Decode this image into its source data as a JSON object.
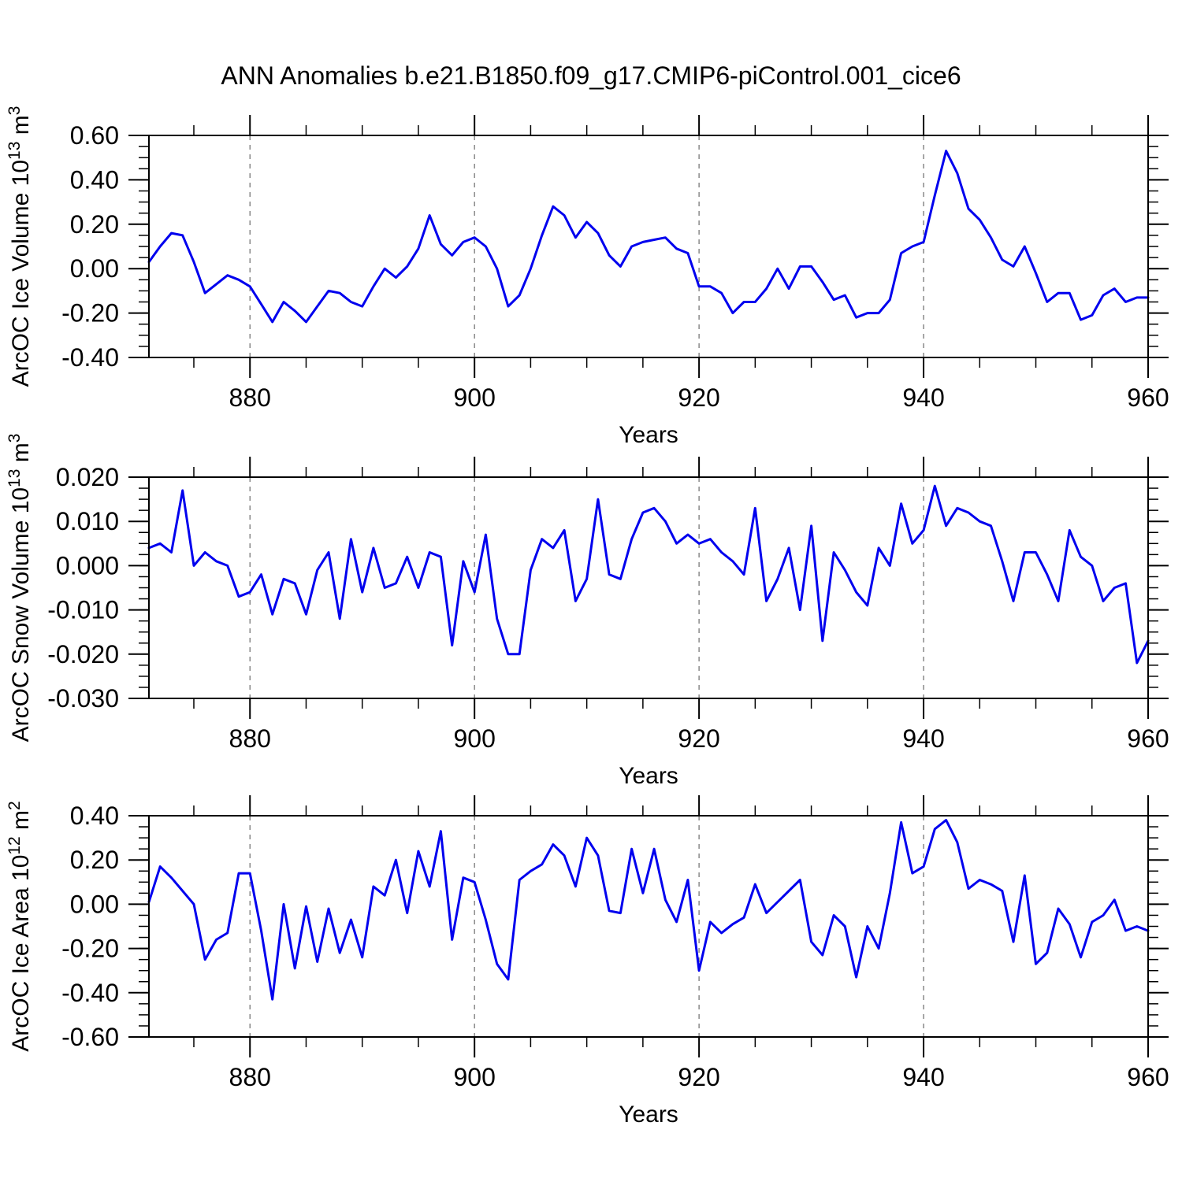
{
  "title": "ANN Anomalies b.e21.B1850.f09_g17.CMIP6-piControl.001_cice6",
  "colors": {
    "line": "#0000EE",
    "gridline": "#777777",
    "axis": "#000000",
    "text": "#000000",
    "background": "#FFFFFF"
  },
  "chart_data": {
    "type": "line",
    "figure_title": "ANN Anomalies b.e21.B1850.f09_g17.CMIP6-piControl.001_cice6",
    "grid": "vertical-dashed",
    "legend": null,
    "x": {
      "label": "Years",
      "range": [
        871,
        960
      ],
      "tick_values": [
        880,
        900,
        920,
        940,
        960
      ],
      "tick_labels": [
        "880",
        "900",
        "920",
        "940",
        "960"
      ],
      "minor_tick_start": 875,
      "minor_tick_step": 5,
      "grid_years": [
        880,
        900,
        920,
        940
      ],
      "years": [
        871,
        872,
        873,
        874,
        875,
        876,
        877,
        878,
        879,
        880,
        881,
        882,
        883,
        884,
        885,
        886,
        887,
        888,
        889,
        890,
        891,
        892,
        893,
        894,
        895,
        896,
        897,
        898,
        899,
        900,
        901,
        902,
        903,
        904,
        905,
        906,
        907,
        908,
        909,
        910,
        911,
        912,
        913,
        914,
        915,
        916,
        917,
        918,
        919,
        920,
        921,
        922,
        923,
        924,
        925,
        926,
        927,
        928,
        929,
        930,
        931,
        932,
        933,
        934,
        935,
        936,
        937,
        938,
        939,
        940,
        941,
        942,
        943,
        944,
        945,
        946,
        947,
        948,
        949,
        950,
        951,
        952,
        953,
        954,
        955,
        956,
        957,
        958,
        959,
        960
      ]
    },
    "panels": [
      {
        "name": "arcoc-ice-volume",
        "ylabel": "ArcOC Ice Volume 10^13 m^3",
        "ylabel_parts": {
          "main": "ArcOC Ice Volume 10",
          "sup1": "13",
          "mid": " m",
          "sup2": "3"
        },
        "ylim": [
          -0.4,
          0.6
        ],
        "ytick_values": [
          0.6,
          0.4,
          0.2,
          0.0,
          -0.2,
          -0.4
        ],
        "ytick_labels": [
          "0.60",
          "0.40",
          "0.20",
          "0.00",
          "-0.20",
          "-0.40"
        ],
        "y_minor_step": 0.05,
        "values": [
          0.03,
          0.1,
          0.16,
          0.15,
          0.03,
          -0.11,
          -0.07,
          -0.03,
          -0.05,
          -0.08,
          -0.16,
          -0.24,
          -0.15,
          -0.19,
          -0.24,
          -0.17,
          -0.1,
          -0.11,
          -0.15,
          -0.17,
          -0.08,
          0.0,
          -0.04,
          0.01,
          0.09,
          0.24,
          0.11,
          0.06,
          0.12,
          0.14,
          0.1,
          0.0,
          -0.17,
          -0.12,
          0.0,
          0.15,
          0.28,
          0.24,
          0.14,
          0.21,
          0.16,
          0.06,
          0.01,
          0.1,
          0.12,
          0.13,
          0.14,
          0.09,
          0.07,
          -0.08,
          -0.08,
          -0.11,
          -0.2,
          -0.15,
          -0.15,
          -0.09,
          0.0,
          -0.09,
          0.01,
          0.01,
          -0.06,
          -0.14,
          -0.12,
          -0.22,
          -0.2,
          -0.2,
          -0.14,
          0.07,
          0.1,
          0.12,
          0.33,
          0.53,
          0.43,
          0.27,
          0.22,
          0.14,
          0.04,
          0.01,
          0.1,
          -0.02,
          -0.15,
          -0.11,
          -0.11,
          -0.23,
          -0.21,
          -0.12,
          -0.09,
          -0.15,
          -0.13,
          -0.13
        ]
      },
      {
        "name": "arcoc-snow-volume",
        "ylabel": "ArcOC Snow Volume 10^13 m^3",
        "ylabel_parts": {
          "main": "ArcOC Snow Volume 10",
          "sup1": "13",
          "mid": " m",
          "sup2": "3"
        },
        "ylim": [
          -0.03,
          0.02
        ],
        "ytick_values": [
          0.02,
          0.01,
          0.0,
          -0.01,
          -0.02,
          -0.03
        ],
        "ytick_labels": [
          "0.020",
          "0.010",
          "0.000",
          "-0.010",
          "-0.020",
          "-0.030"
        ],
        "y_minor_step": 0.0025,
        "values": [
          0.004,
          0.005,
          0.003,
          0.017,
          0.0,
          0.003,
          0.001,
          0.0,
          -0.007,
          -0.006,
          -0.002,
          -0.011,
          -0.003,
          -0.004,
          -0.011,
          -0.001,
          0.003,
          -0.012,
          0.006,
          -0.006,
          0.004,
          -0.005,
          -0.004,
          0.002,
          -0.005,
          0.003,
          0.002,
          -0.018,
          0.001,
          -0.006,
          0.007,
          -0.012,
          -0.02,
          -0.02,
          -0.001,
          0.006,
          0.004,
          0.008,
          -0.008,
          -0.003,
          0.015,
          -0.002,
          -0.003,
          0.006,
          0.012,
          0.013,
          0.01,
          0.005,
          0.007,
          0.005,
          0.006,
          0.003,
          0.001,
          -0.002,
          0.013,
          -0.008,
          -0.003,
          0.004,
          -0.01,
          0.009,
          -0.017,
          0.003,
          -0.001,
          -0.006,
          -0.009,
          0.004,
          0.0,
          0.014,
          0.005,
          0.008,
          0.018,
          0.009,
          0.013,
          0.012,
          0.01,
          0.009,
          0.001,
          -0.008,
          0.003,
          0.003,
          -0.002,
          -0.008,
          0.008,
          0.002,
          0.0,
          -0.008,
          -0.005,
          -0.004,
          -0.022,
          -0.017
        ]
      },
      {
        "name": "arcoc-ice-area",
        "ylabel": "ArcOC Ice Area 10^12 m^2",
        "ylabel_parts": {
          "main": "ArcOC Ice Area 10",
          "sup1": "12",
          "mid": " m",
          "sup2": "2"
        },
        "ylim": [
          -0.6,
          0.4
        ],
        "ytick_values": [
          0.4,
          0.2,
          0.0,
          -0.2,
          -0.4,
          -0.6
        ],
        "ytick_labels": [
          "0.40",
          "0.20",
          "0.00",
          "-0.20",
          "-0.40",
          "-0.60"
        ],
        "y_minor_step": 0.05,
        "values": [
          0.01,
          0.17,
          0.12,
          0.06,
          0.0,
          -0.25,
          -0.16,
          -0.13,
          0.14,
          0.14,
          -0.12,
          -0.43,
          0.0,
          -0.29,
          -0.01,
          -0.26,
          -0.02,
          -0.22,
          -0.07,
          -0.24,
          0.08,
          0.04,
          0.2,
          -0.04,
          0.24,
          0.08,
          0.33,
          -0.16,
          0.12,
          0.1,
          -0.07,
          -0.27,
          -0.34,
          0.11,
          0.15,
          0.18,
          0.27,
          0.22,
          0.08,
          0.3,
          0.22,
          -0.03,
          -0.04,
          0.25,
          0.05,
          0.25,
          0.02,
          -0.08,
          0.11,
          -0.3,
          -0.08,
          -0.13,
          -0.09,
          -0.06,
          0.09,
          -0.04,
          0.01,
          0.06,
          0.11,
          -0.17,
          -0.23,
          -0.05,
          -0.1,
          -0.33,
          -0.1,
          -0.2,
          0.05,
          0.37,
          0.14,
          0.17,
          0.34,
          0.38,
          0.28,
          0.07,
          0.11,
          0.09,
          0.06,
          -0.17,
          0.13,
          -0.27,
          -0.22,
          -0.02,
          -0.09,
          -0.24,
          -0.08,
          -0.05,
          0.02,
          -0.12,
          -0.1,
          -0.12
        ]
      }
    ]
  }
}
